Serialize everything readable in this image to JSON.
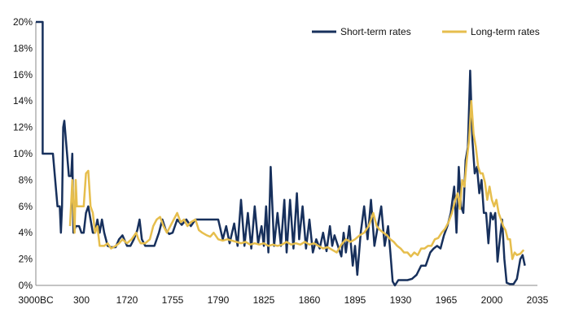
{
  "chart_data": {
    "type": "line",
    "title": "",
    "xlabel": "",
    "ylabel": "",
    "ylim": [
      0,
      20
    ],
    "y_ticks": [
      "0%",
      "2%",
      "4%",
      "6%",
      "8%",
      "10%",
      "12%",
      "14%",
      "16%",
      "18%",
      "20%"
    ],
    "x_ticks": [
      "3000BC",
      "300",
      "1720",
      "1755",
      "1790",
      "1825",
      "1860",
      "1895",
      "1930",
      "1965",
      "2000",
      "2035"
    ],
    "legend_position": "top-right",
    "grid": false,
    "series": [
      {
        "name": "Short-term rates",
        "color": "#17305c",
        "points": [
          [
            0,
            20
          ],
          [
            0.6,
            20
          ],
          [
            0.6,
            10
          ],
          [
            1.5,
            10
          ],
          [
            1.8,
            7
          ],
          [
            1.9,
            6
          ],
          [
            2.1,
            6
          ],
          [
            2.2,
            4
          ],
          [
            2.3,
            6
          ],
          [
            2.4,
            12
          ],
          [
            2.5,
            12.5
          ],
          [
            2.9,
            8.3
          ],
          [
            3.1,
            8.3
          ],
          [
            3.2,
            10
          ],
          [
            3.3,
            4
          ],
          [
            3.5,
            4.5
          ],
          [
            3.8,
            4.5
          ],
          [
            4.0,
            4
          ],
          [
            4.2,
            4
          ],
          [
            4.4,
            5.5
          ],
          [
            4.6,
            6
          ],
          [
            4.8,
            5
          ],
          [
            5.0,
            4
          ],
          [
            5.2,
            4
          ],
          [
            5.4,
            5
          ],
          [
            5.6,
            4
          ],
          [
            5.8,
            5
          ],
          [
            6.0,
            4
          ],
          [
            6.3,
            3
          ],
          [
            6.6,
            2.9
          ],
          [
            7.0,
            2.9
          ],
          [
            7.3,
            3.5
          ],
          [
            7.6,
            3.8
          ],
          [
            8.0,
            3
          ],
          [
            8.3,
            3
          ],
          [
            8.6,
            3.5
          ],
          [
            8.9,
            4.2
          ],
          [
            9.1,
            5
          ],
          [
            9.3,
            3.5
          ],
          [
            9.6,
            3
          ],
          [
            10.0,
            3
          ],
          [
            10.4,
            3
          ],
          [
            10.8,
            4
          ],
          [
            11.1,
            5
          ],
          [
            11.4,
            4.2
          ],
          [
            11.7,
            3.9
          ],
          [
            12.0,
            4
          ],
          [
            12.4,
            5
          ],
          [
            12.8,
            4.6
          ],
          [
            13.2,
            5
          ],
          [
            13.6,
            4.5
          ],
          [
            14.0,
            5
          ],
          [
            14.6,
            5
          ],
          [
            15.4,
            5
          ],
          [
            16.0,
            5
          ],
          [
            16.4,
            3.5
          ],
          [
            16.7,
            4.5
          ],
          [
            17.0,
            3.2
          ],
          [
            17.4,
            4.7
          ],
          [
            17.7,
            3
          ],
          [
            18.0,
            6.5
          ],
          [
            18.3,
            3
          ],
          [
            18.6,
            5.5
          ],
          [
            18.9,
            2.8
          ],
          [
            19.2,
            6
          ],
          [
            19.5,
            3.2
          ],
          [
            19.8,
            4.5
          ],
          [
            20.0,
            3
          ],
          [
            20.2,
            6
          ],
          [
            20.4,
            2.5
          ],
          [
            20.6,
            9
          ],
          [
            20.9,
            3
          ],
          [
            21.2,
            5.5
          ],
          [
            21.5,
            3
          ],
          [
            21.8,
            6.5
          ],
          [
            22.0,
            2.5
          ],
          [
            22.3,
            6.5
          ],
          [
            22.6,
            2.8
          ],
          [
            22.9,
            7
          ],
          [
            23.1,
            3.5
          ],
          [
            23.4,
            6
          ],
          [
            23.7,
            2.8
          ],
          [
            24.0,
            5
          ],
          [
            24.3,
            2.5
          ],
          [
            24.6,
            3.5
          ],
          [
            24.9,
            2.8
          ],
          [
            25.2,
            4
          ],
          [
            25.5,
            2.6
          ],
          [
            25.8,
            4.5
          ],
          [
            26.0,
            3
          ],
          [
            26.2,
            3.8
          ],
          [
            26.5,
            3
          ],
          [
            26.8,
            2.2
          ],
          [
            27.0,
            4
          ],
          [
            27.2,
            2.5
          ],
          [
            27.5,
            4.5
          ],
          [
            27.8,
            1.5
          ],
          [
            28.0,
            3
          ],
          [
            28.2,
            0.8
          ],
          [
            28.5,
            4
          ],
          [
            28.8,
            6
          ],
          [
            29.1,
            3.5
          ],
          [
            29.4,
            6.5
          ],
          [
            29.7,
            3
          ],
          [
            30.0,
            4.5
          ],
          [
            30.3,
            6
          ],
          [
            30.6,
            3
          ],
          [
            30.9,
            4.5
          ],
          [
            31.1,
            2.5
          ],
          [
            31.3,
            0.3
          ],
          [
            31.5,
            0
          ],
          [
            31.8,
            0.4
          ],
          [
            32.2,
            0.4
          ],
          [
            32.6,
            0.4
          ],
          [
            33.0,
            0.5
          ],
          [
            33.4,
            0.8
          ],
          [
            33.8,
            1.5
          ],
          [
            34.2,
            1.5
          ],
          [
            34.6,
            2.5
          ],
          [
            34.9,
            2.8
          ],
          [
            35.2,
            3
          ],
          [
            35.5,
            2.8
          ],
          [
            35.8,
            3.8
          ],
          [
            36.1,
            4.5
          ],
          [
            36.4,
            5.5
          ],
          [
            36.7,
            7.5
          ],
          [
            36.9,
            4
          ],
          [
            37.1,
            9
          ],
          [
            37.3,
            6
          ],
          [
            37.5,
            5.5
          ],
          [
            37.7,
            9.5
          ],
          [
            37.9,
            10.5
          ],
          [
            38.1,
            16.3
          ],
          [
            38.3,
            11
          ],
          [
            38.5,
            8.5
          ],
          [
            38.7,
            9
          ],
          [
            38.9,
            7
          ],
          [
            39.1,
            8
          ],
          [
            39.3,
            5.5
          ],
          [
            39.5,
            5.5
          ],
          [
            39.7,
            3.2
          ],
          [
            39.9,
            5.5
          ],
          [
            40.1,
            5
          ],
          [
            40.3,
            5.5
          ],
          [
            40.5,
            1.8
          ],
          [
            40.7,
            3.5
          ],
          [
            40.9,
            5
          ],
          [
            41.1,
            2
          ],
          [
            41.3,
            0.2
          ],
          [
            41.6,
            0.1
          ],
          [
            41.9,
            0.1
          ],
          [
            42.2,
            0.5
          ],
          [
            42.5,
            2
          ],
          [
            42.7,
            2.3
          ],
          [
            42.9,
            1.5
          ]
        ]
      },
      {
        "name": "Long-term rates",
        "color": "#e6be4d",
        "points": [
          [
            3.0,
            4.5
          ],
          [
            3.2,
            8
          ],
          [
            3.4,
            4
          ],
          [
            3.5,
            8
          ],
          [
            3.6,
            6
          ],
          [
            3.8,
            6
          ],
          [
            4.2,
            6
          ],
          [
            4.4,
            8.5
          ],
          [
            4.6,
            8.7
          ],
          [
            4.8,
            6
          ],
          [
            5.0,
            5.5
          ],
          [
            5.2,
            4
          ],
          [
            5.4,
            4.5
          ],
          [
            5.6,
            3
          ],
          [
            6.0,
            3
          ],
          [
            6.3,
            3.2
          ],
          [
            6.6,
            2.8
          ],
          [
            7.0,
            3
          ],
          [
            7.3,
            3.2
          ],
          [
            7.6,
            3.5
          ],
          [
            8.0,
            3.2
          ],
          [
            8.4,
            3.5
          ],
          [
            8.8,
            4
          ],
          [
            9.0,
            3.5
          ],
          [
            9.2,
            3.2
          ],
          [
            9.6,
            3.2
          ],
          [
            10.0,
            3.5
          ],
          [
            10.3,
            4.5
          ],
          [
            10.6,
            5
          ],
          [
            10.9,
            5.2
          ],
          [
            11.2,
            4.5
          ],
          [
            11.5,
            4
          ],
          [
            11.8,
            4.5
          ],
          [
            12.1,
            5
          ],
          [
            12.4,
            5.5
          ],
          [
            12.7,
            4.8
          ],
          [
            13.0,
            5
          ],
          [
            13.3,
            4.5
          ],
          [
            13.6,
            4.8
          ],
          [
            14.0,
            5
          ],
          [
            14.3,
            4.2
          ],
          [
            14.6,
            4
          ],
          [
            15.0,
            3.8
          ],
          [
            15.3,
            3.7
          ],
          [
            15.6,
            4
          ],
          [
            16.0,
            3.5
          ],
          [
            16.4,
            3.4
          ],
          [
            16.8,
            3.5
          ],
          [
            17.2,
            3.4
          ],
          [
            17.6,
            3.3
          ],
          [
            18.0,
            3.2
          ],
          [
            18.4,
            3.3
          ],
          [
            18.8,
            3.1
          ],
          [
            19.2,
            3.2
          ],
          [
            19.6,
            3.1
          ],
          [
            20.0,
            3.2
          ],
          [
            20.4,
            3
          ],
          [
            20.8,
            3.1
          ],
          [
            21.2,
            3
          ],
          [
            21.6,
            3.1
          ],
          [
            22.0,
            3.3
          ],
          [
            22.4,
            3.1
          ],
          [
            22.8,
            3.2
          ],
          [
            23.2,
            3.1
          ],
          [
            23.6,
            3.3
          ],
          [
            24.0,
            3.1
          ],
          [
            24.4,
            3.2
          ],
          [
            24.8,
            3
          ],
          [
            25.2,
            2.8
          ],
          [
            25.6,
            2.9
          ],
          [
            26.0,
            2.7
          ],
          [
            26.4,
            2.5
          ],
          [
            26.8,
            3.1
          ],
          [
            27.2,
            3.5
          ],
          [
            27.6,
            3.3
          ],
          [
            28.0,
            3.5
          ],
          [
            28.4,
            3.8
          ],
          [
            28.8,
            4
          ],
          [
            29.2,
            4.5
          ],
          [
            29.6,
            5.5
          ],
          [
            29.9,
            4.5
          ],
          [
            30.2,
            4.2
          ],
          [
            30.5,
            4
          ],
          [
            30.8,
            3.8
          ],
          [
            31.1,
            3.5
          ],
          [
            31.4,
            3.3
          ],
          [
            31.7,
            3
          ],
          [
            32.0,
            2.8
          ],
          [
            32.3,
            2.5
          ],
          [
            32.6,
            2.5
          ],
          [
            32.9,
            2.2
          ],
          [
            33.2,
            2.5
          ],
          [
            33.5,
            2.3
          ],
          [
            33.8,
            2.8
          ],
          [
            34.1,
            2.8
          ],
          [
            34.4,
            3
          ],
          [
            34.7,
            3
          ],
          [
            35.0,
            3.5
          ],
          [
            35.3,
            3.6
          ],
          [
            35.6,
            4
          ],
          [
            35.9,
            4.3
          ],
          [
            36.2,
            4.8
          ],
          [
            36.5,
            5.5
          ],
          [
            36.8,
            6.5
          ],
          [
            37.0,
            7
          ],
          [
            37.2,
            5.8
          ],
          [
            37.4,
            8
          ],
          [
            37.6,
            7.5
          ],
          [
            37.8,
            9.5
          ],
          [
            38.0,
            11
          ],
          [
            38.2,
            14
          ],
          [
            38.4,
            11.5
          ],
          [
            38.6,
            10.5
          ],
          [
            38.8,
            9
          ],
          [
            39.0,
            8.5
          ],
          [
            39.2,
            8.5
          ],
          [
            39.4,
            7.8
          ],
          [
            39.6,
            6.5
          ],
          [
            39.8,
            7.5
          ],
          [
            40.0,
            6.5
          ],
          [
            40.2,
            6
          ],
          [
            40.4,
            6.5
          ],
          [
            40.6,
            5.5
          ],
          [
            40.8,
            5
          ],
          [
            41.0,
            4.5
          ],
          [
            41.2,
            4.2
          ],
          [
            41.4,
            3.5
          ],
          [
            41.6,
            3.5
          ],
          [
            41.8,
            2
          ],
          [
            42.0,
            2.5
          ],
          [
            42.2,
            2.3
          ],
          [
            42.5,
            2.4
          ],
          [
            42.8,
            2.7
          ]
        ]
      }
    ]
  }
}
